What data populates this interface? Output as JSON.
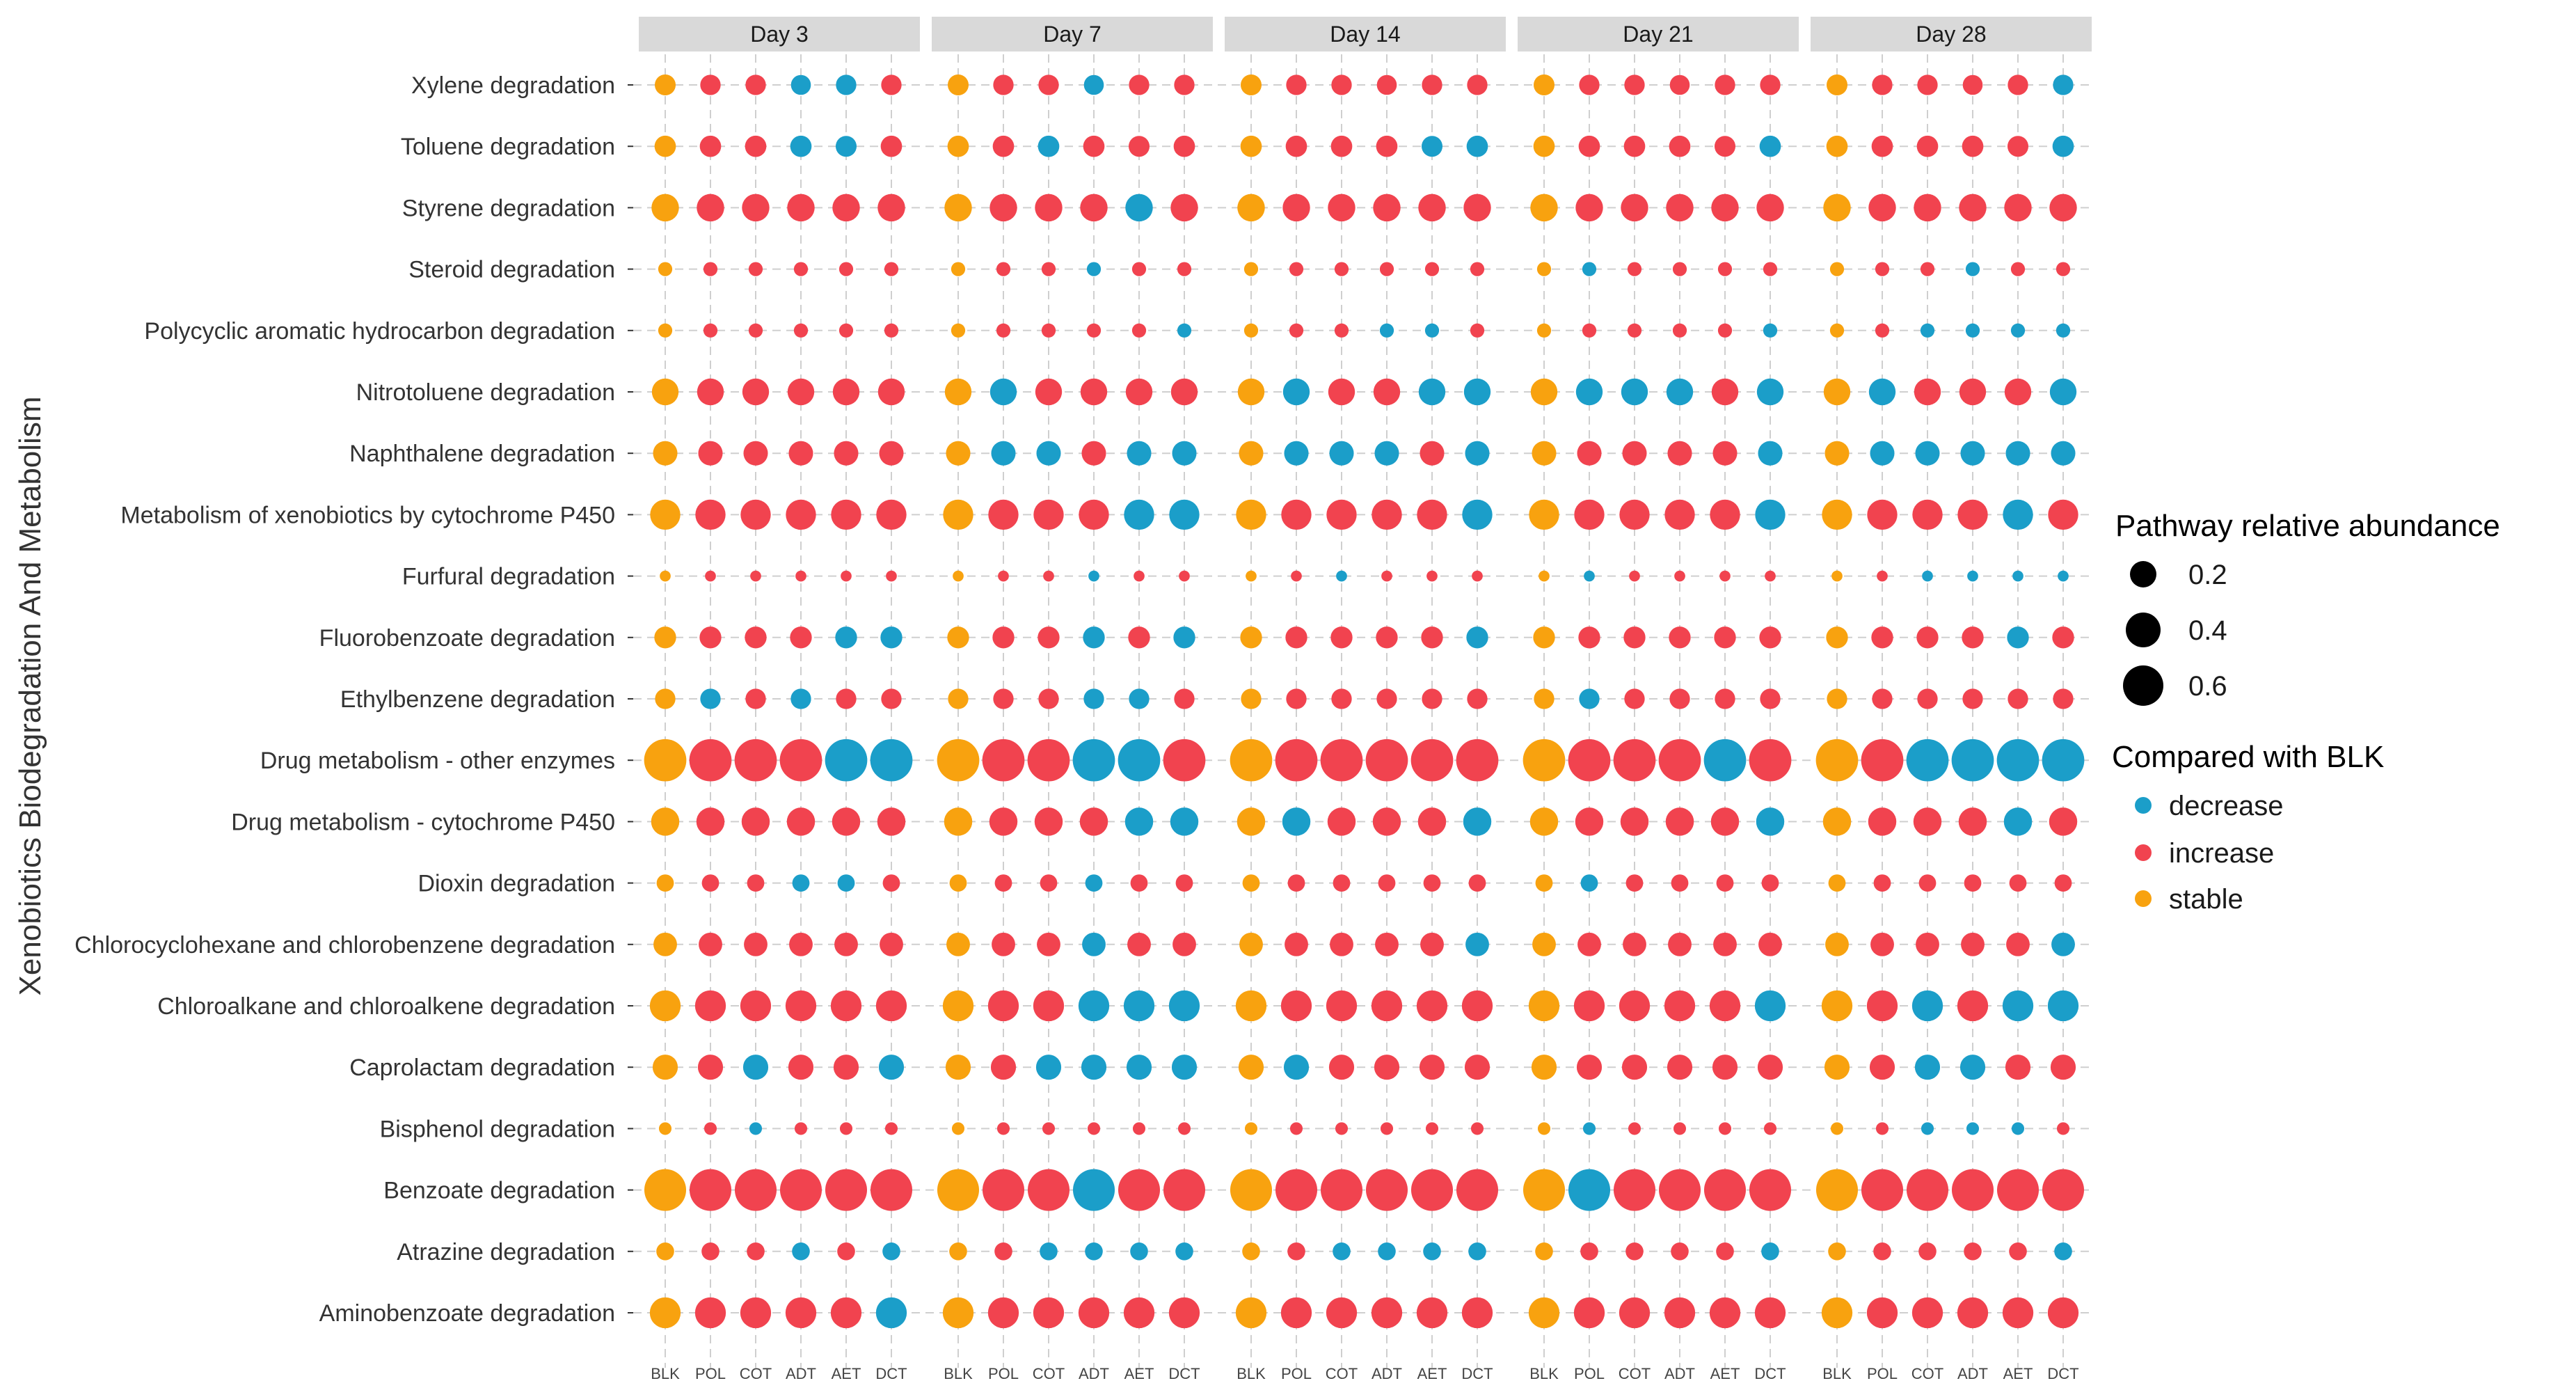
{
  "colors": {
    "decrease": "#1b9ec9",
    "increase": "#f1434f",
    "stable": "#f8a20f",
    "strip": "#d9d9d9",
    "grid": "#cfcfcf",
    "text": "#333333"
  },
  "chart_data": {
    "type": "bubble",
    "y_axis_title": "Xenobiotics Biodegradation And Metabolism",
    "panels": [
      "Day 3",
      "Day 7",
      "Day 14",
      "Day 21",
      "Day 28"
    ],
    "treatments": [
      "BLK",
      "POL",
      "COT",
      "ADT",
      "AET",
      "DCT"
    ],
    "pathways": [
      "Xylene degradation",
      "Toluene degradation",
      "Styrene degradation",
      "Steroid degradation",
      "Polycyclic aromatic hydrocarbon degradation",
      "Nitrotoluene degradation",
      "Naphthalene degradation",
      "Metabolism of xenobiotics by cytochrome P450",
      "Furfural degradation",
      "Fluorobenzoate degradation",
      "Ethylbenzene degradation",
      "Drug metabolism - other enzymes",
      "Drug metabolism - cytochrome P450",
      "Dioxin degradation",
      "Chlorocyclohexane and chlorobenzene degradation",
      "Chloroalkane and chloroalkene degradation",
      "Caprolactam degradation",
      "Bisphenol degradation",
      "Benzoate degradation",
      "Atrazine degradation",
      "Aminobenzoate degradation"
    ],
    "size_legend": {
      "title": "Pathway relative abundance",
      "values": [
        0.2,
        0.4,
        0.6
      ],
      "labels": [
        "0.2",
        "0.4",
        "0.6"
      ]
    },
    "color_legend": {
      "title": "Compared with BLK",
      "keys": [
        "decrease",
        "increase",
        "stable"
      ],
      "labels": [
        "decrease",
        "increase",
        "stable"
      ]
    },
    "status_codes": {
      "S": "stable",
      "I": "increase",
      "D": "decrease"
    },
    "abundance": [
      [
        0.22,
        0.21,
        0.21,
        0.2,
        0.21,
        0.21
      ],
      [
        0.23,
        0.23,
        0.23,
        0.23,
        0.22,
        0.23
      ],
      [
        0.38,
        0.38,
        0.38,
        0.38,
        0.38,
        0.38
      ],
      [
        0.1,
        0.1,
        0.1,
        0.1,
        0.1,
        0.1
      ],
      [
        0.1,
        0.1,
        0.1,
        0.1,
        0.1,
        0.1
      ],
      [
        0.36,
        0.36,
        0.36,
        0.36,
        0.36,
        0.36
      ],
      [
        0.3,
        0.3,
        0.3,
        0.3,
        0.3,
        0.3
      ],
      [
        0.46,
        0.46,
        0.46,
        0.46,
        0.46,
        0.46
      ],
      [
        0.06,
        0.06,
        0.06,
        0.06,
        0.06,
        0.06
      ],
      [
        0.24,
        0.24,
        0.24,
        0.24,
        0.24,
        0.24
      ],
      [
        0.21,
        0.21,
        0.21,
        0.21,
        0.21,
        0.21
      ],
      [
        0.9,
        0.9,
        0.9,
        0.9,
        0.9,
        0.9
      ],
      [
        0.4,
        0.4,
        0.4,
        0.4,
        0.4,
        0.4
      ],
      [
        0.15,
        0.15,
        0.15,
        0.15,
        0.15,
        0.15
      ],
      [
        0.28,
        0.28,
        0.28,
        0.28,
        0.28,
        0.28
      ],
      [
        0.48,
        0.48,
        0.48,
        0.48,
        0.48,
        0.48
      ],
      [
        0.32,
        0.32,
        0.32,
        0.32,
        0.32,
        0.32
      ],
      [
        0.08,
        0.08,
        0.08,
        0.08,
        0.08,
        0.08
      ],
      [
        0.88,
        0.88,
        0.88,
        0.88,
        0.88,
        0.88
      ],
      [
        0.16,
        0.16,
        0.16,
        0.16,
        0.16,
        0.16
      ],
      [
        0.48,
        0.48,
        0.48,
        0.48,
        0.48,
        0.48
      ]
    ],
    "status": {
      "Day 3": [
        "SIIDDI",
        "SIIDDI",
        "SIIIII",
        "SIIIII",
        "SIIIII",
        "SIIIII",
        "SIIIII",
        "SIIIII",
        "SIIIII",
        "SIIIDD",
        "SDIDII",
        "SIIIDD",
        "SIIIII",
        "SIIDDI",
        "SIIIII",
        "SIIIII",
        "SIDIID",
        "SIDIII",
        "SIIIII",
        "SIIDID",
        "SIIIID"
      ],
      "Day 7": [
        "SIIDII",
        "SIDIII",
        "SIIIDI",
        "SIIDII",
        "SIIIID",
        "SDIIII",
        "SDDIDD",
        "SIIIDD",
        "SIIDII",
        "SIIDID",
        "SIIDDI",
        "SIIDDI",
        "SIIIDD",
        "SIIDII",
        "SIIDII",
        "SIIDDD",
        "SIDDDD",
        "SIIIII",
        "SIIDII",
        "SIDDDD",
        "SIIIII"
      ],
      "Day 14": [
        "SIIIII",
        "SIIIDD",
        "SIIIII",
        "SIIIII",
        "SIIDDI",
        "SDIIDD",
        "SDDDID",
        "SIIIID",
        "SIDIII",
        "SIIIID",
        "SIIIII",
        "SIIIII",
        "SDIIID",
        "SIIIII",
        "SIIIID",
        "SIIIII",
        "SDIIII",
        "SIIIII",
        "SIIIII",
        "SIDDDD",
        "SIIIII"
      ],
      "Day 21": [
        "SIIIII",
        "SIIIID",
        "SIIIII",
        "SDIIII",
        "SIIIID",
        "SDDDID",
        "SIIIID",
        "SIIIID",
        "SDIIII",
        "SIIIII",
        "SDIIII",
        "SIIIDI",
        "SIIIID",
        "SDIIII",
        "SIIIII",
        "SIIIID",
        "SIIIII",
        "SDIIII",
        "SDIIII",
        "SIIIID",
        "SIIIII"
      ],
      "Day 28": [
        "SIIIID",
        "SIIIID",
        "SIIIII",
        "SIIDII",
        "SIDDDD",
        "SDIIID",
        "SDDDDD",
        "SIIIDI",
        "SIDDDD",
        "SIIIDI",
        "SIIIII",
        "SIDDDD",
        "SIIIDI",
        "SIIIII",
        "SIIIID",
        "SIDIDD",
        "SIDDII",
        "SIDDDI",
        "SIIIII",
        "SIIIID",
        "SIIIII"
      ]
    }
  }
}
